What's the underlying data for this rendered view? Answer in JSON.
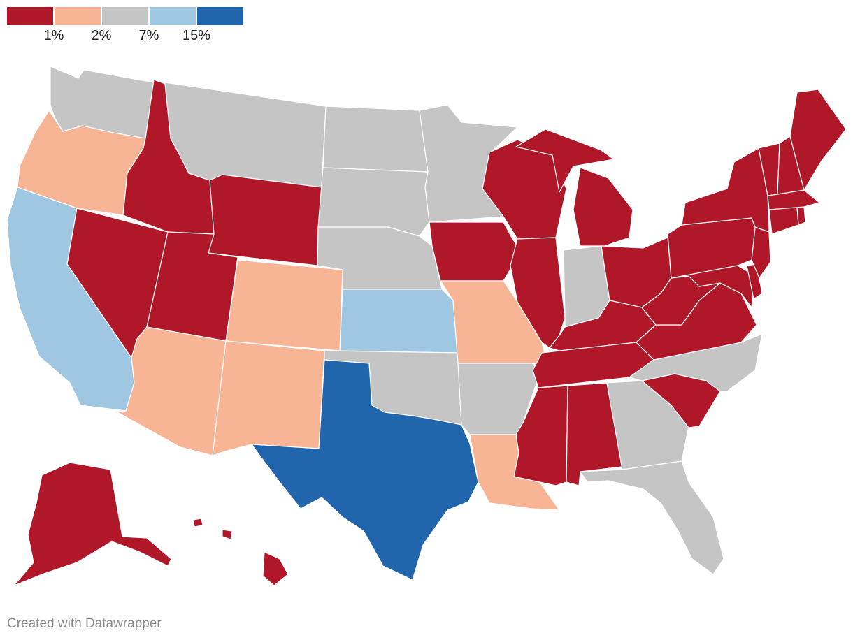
{
  "legend": {
    "colors": [
      "#b0182a",
      "#f7b596",
      "#c5c5c5",
      "#9fc7e1",
      "#2166ac"
    ],
    "thresholds": [
      "1%",
      "2%",
      "7%",
      "15%"
    ]
  },
  "footer": {
    "credit": "Created with Datawrapper"
  },
  "states": [
    {
      "name": "washington",
      "cls": 2
    },
    {
      "name": "oregon",
      "cls": 1
    },
    {
      "name": "california",
      "cls": 3
    },
    {
      "name": "idaho",
      "cls": 0
    },
    {
      "name": "nevada",
      "cls": 0
    },
    {
      "name": "montana",
      "cls": 2
    },
    {
      "name": "wyoming",
      "cls": 0
    },
    {
      "name": "utah",
      "cls": 0
    },
    {
      "name": "arizona",
      "cls": 1
    },
    {
      "name": "colorado",
      "cls": 1
    },
    {
      "name": "new-mexico",
      "cls": 1
    },
    {
      "name": "north-dakota",
      "cls": 2
    },
    {
      "name": "south-dakota",
      "cls": 2
    },
    {
      "name": "nebraska",
      "cls": 2
    },
    {
      "name": "kansas",
      "cls": 3
    },
    {
      "name": "oklahoma",
      "cls": 2
    },
    {
      "name": "texas",
      "cls": 4
    },
    {
      "name": "minnesota",
      "cls": 2
    },
    {
      "name": "iowa",
      "cls": 0
    },
    {
      "name": "missouri",
      "cls": 1
    },
    {
      "name": "arkansas",
      "cls": 2
    },
    {
      "name": "louisiana",
      "cls": 1
    },
    {
      "name": "wisconsin",
      "cls": 0
    },
    {
      "name": "illinois",
      "cls": 0
    },
    {
      "name": "michigan",
      "cls": 0
    },
    {
      "name": "indiana",
      "cls": 2
    },
    {
      "name": "ohio",
      "cls": 0
    },
    {
      "name": "kentucky",
      "cls": 0
    },
    {
      "name": "tennessee",
      "cls": 0
    },
    {
      "name": "mississippi",
      "cls": 0
    },
    {
      "name": "alabama",
      "cls": 0
    },
    {
      "name": "georgia",
      "cls": 2
    },
    {
      "name": "florida",
      "cls": 2
    },
    {
      "name": "south-carolina",
      "cls": 0
    },
    {
      "name": "north-carolina",
      "cls": 2
    },
    {
      "name": "virginia",
      "cls": 0
    },
    {
      "name": "west-virginia",
      "cls": 0
    },
    {
      "name": "maryland",
      "cls": 0
    },
    {
      "name": "delaware",
      "cls": 0
    },
    {
      "name": "new-jersey",
      "cls": 0
    },
    {
      "name": "pennsylvania",
      "cls": 0
    },
    {
      "name": "new-york",
      "cls": 0
    },
    {
      "name": "connecticut",
      "cls": 0
    },
    {
      "name": "rhode-island",
      "cls": 0
    },
    {
      "name": "massachusetts",
      "cls": 0
    },
    {
      "name": "vermont",
      "cls": 0
    },
    {
      "name": "new-hampshire",
      "cls": 0
    },
    {
      "name": "maine",
      "cls": 0
    },
    {
      "name": "alaska",
      "cls": 0
    },
    {
      "name": "hawaii",
      "cls": 0
    }
  ]
}
